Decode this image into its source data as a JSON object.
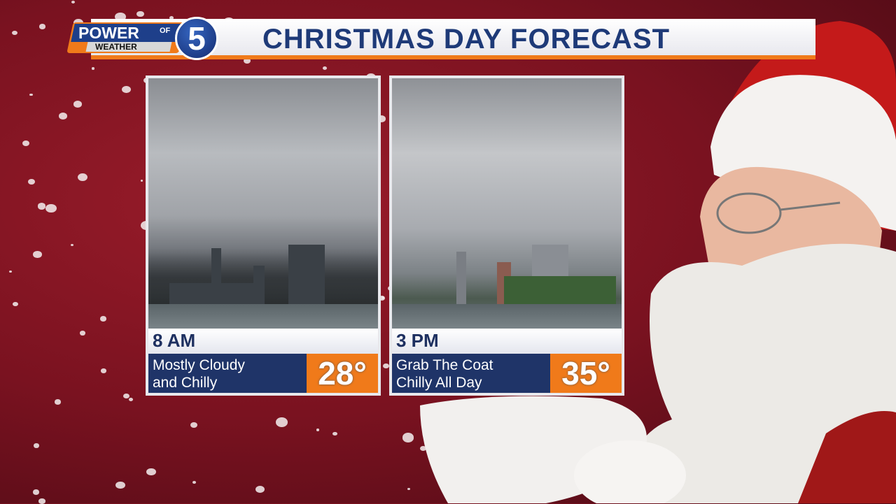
{
  "header": {
    "title": "CHRISTMAS DAY FORECAST",
    "logo": {
      "line1": "POWER",
      "of": "OF",
      "line2": "WEATHER",
      "channel": "5"
    }
  },
  "forecasts": [
    {
      "time": "8 AM",
      "line1": "Mostly Cloudy",
      "line2": "and Chilly",
      "temp": "28°"
    },
    {
      "time": "3 PM",
      "line1": "Grab The Coat",
      "line2": "Chilly All Day",
      "temp": "35°"
    }
  ],
  "colors": {
    "background": "#7a1220",
    "banner_text": "#1e3a78",
    "accent_orange": "#f07a1a",
    "description_bar": "#1f3468"
  }
}
